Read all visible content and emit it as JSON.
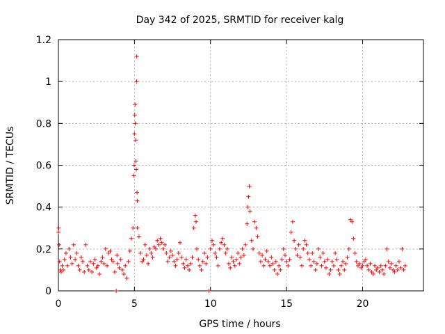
{
  "chart_data": {
    "type": "scatter",
    "title": "Day 342 of 2025, SRMTID for receiver kalg",
    "xlabel": "GPS time / hours",
    "ylabel": "SRMTID / TECUs",
    "xlim": [
      0,
      24
    ],
    "ylim": [
      0,
      1.2
    ],
    "xticks": [
      0,
      5,
      10,
      15,
      20
    ],
    "yticks": [
      0,
      0.2,
      0.4,
      0.6,
      0.8,
      1,
      1.2
    ],
    "xtick_labels": [
      "0",
      "5",
      "10",
      "15",
      "20"
    ],
    "ytick_labels": [
      "0",
      "0.2",
      "0.4",
      "0.6",
      "0.8",
      "1",
      "1.2"
    ],
    "grid": true,
    "marker": "+",
    "color": "#ff0000",
    "series": [
      {
        "name": "SRMTID",
        "points": [
          [
            0.0,
            0.28
          ],
          [
            0.02,
            0.3
          ],
          [
            0.05,
            0.22
          ],
          [
            0.08,
            0.14
          ],
          [
            0.12,
            0.1
          ],
          [
            0.18,
            0.09
          ],
          [
            0.25,
            0.12
          ],
          [
            0.32,
            0.1
          ],
          [
            0.4,
            0.15
          ],
          [
            0.5,
            0.18
          ],
          [
            0.6,
            0.12
          ],
          [
            0.7,
            0.2
          ],
          [
            0.8,
            0.16
          ],
          [
            0.9,
            0.13
          ],
          [
            1.0,
            0.22
          ],
          [
            1.1,
            0.15
          ],
          [
            1.2,
            0.18
          ],
          [
            1.3,
            0.12
          ],
          [
            1.4,
            0.1
          ],
          [
            1.5,
            0.16
          ],
          [
            1.6,
            0.14
          ],
          [
            1.7,
            0.09
          ],
          [
            1.8,
            0.22
          ],
          [
            1.9,
            0.12
          ],
          [
            2.0,
            0.1
          ],
          [
            2.1,
            0.14
          ],
          [
            2.2,
            0.09
          ],
          [
            2.3,
            0.13
          ],
          [
            2.4,
            0.15
          ],
          [
            2.5,
            0.11
          ],
          [
            2.6,
            0.12
          ],
          [
            2.7,
            0.08
          ],
          [
            2.8,
            0.14
          ],
          [
            2.9,
            0.16
          ],
          [
            3.0,
            0.13
          ],
          [
            3.1,
            0.2
          ],
          [
            3.2,
            0.12
          ],
          [
            3.3,
            0.18
          ],
          [
            3.4,
            0.19
          ],
          [
            3.5,
            0.15
          ],
          [
            3.6,
            0.14
          ],
          [
            3.7,
            0.09
          ],
          [
            3.8,
            0.0
          ],
          [
            3.85,
            0.17
          ],
          [
            3.9,
            0.13
          ],
          [
            4.0,
            0.11
          ],
          [
            4.1,
            0.15
          ],
          [
            4.2,
            0.1
          ],
          [
            4.3,
            0.08
          ],
          [
            4.4,
            0.12
          ],
          [
            4.5,
            0.06
          ],
          [
            4.6,
            0.14
          ],
          [
            4.7,
            0.19
          ],
          [
            4.8,
            0.25
          ],
          [
            4.9,
            0.3
          ],
          [
            4.95,
            0.55
          ],
          [
            4.98,
            0.6
          ],
          [
            5.0,
            0.75
          ],
          [
            5.02,
            0.84
          ],
          [
            5.04,
            0.89
          ],
          [
            5.06,
            0.8
          ],
          [
            5.08,
            0.72
          ],
          [
            5.1,
            0.62
          ],
          [
            5.12,
            0.58
          ],
          [
            5.14,
            1.0
          ],
          [
            5.15,
            1.12
          ],
          [
            5.17,
            0.47
          ],
          [
            5.19,
            0.43
          ],
          [
            5.2,
            0.3
          ],
          [
            5.3,
            0.26
          ],
          [
            5.4,
            0.18
          ],
          [
            5.5,
            0.14
          ],
          [
            5.6,
            0.15
          ],
          [
            5.7,
            0.22
          ],
          [
            5.8,
            0.17
          ],
          [
            5.9,
            0.13
          ],
          [
            6.0,
            0.2
          ],
          [
            6.1,
            0.18
          ],
          [
            6.2,
            0.16
          ],
          [
            6.3,
            0.21
          ],
          [
            6.4,
            0.2
          ],
          [
            6.5,
            0.24
          ],
          [
            6.6,
            0.22
          ],
          [
            6.7,
            0.25
          ],
          [
            6.8,
            0.23
          ],
          [
            6.9,
            0.2
          ],
          [
            7.0,
            0.22
          ],
          [
            7.1,
            0.18
          ],
          [
            7.2,
            0.14
          ],
          [
            7.3,
            0.16
          ],
          [
            7.4,
            0.19
          ],
          [
            7.5,
            0.17
          ],
          [
            7.6,
            0.14
          ],
          [
            7.7,
            0.12
          ],
          [
            7.8,
            0.15
          ],
          [
            7.9,
            0.18
          ],
          [
            8.0,
            0.23
          ],
          [
            8.1,
            0.16
          ],
          [
            8.2,
            0.13
          ],
          [
            8.3,
            0.11
          ],
          [
            8.4,
            0.15
          ],
          [
            8.5,
            0.12
          ],
          [
            8.6,
            0.1
          ],
          [
            8.7,
            0.13
          ],
          [
            8.8,
            0.16
          ],
          [
            8.9,
            0.3
          ],
          [
            9.0,
            0.36
          ],
          [
            9.05,
            0.33
          ],
          [
            9.1,
            0.2
          ],
          [
            9.2,
            0.15
          ],
          [
            9.3,
            0.12
          ],
          [
            9.4,
            0.1
          ],
          [
            9.5,
            0.14
          ],
          [
            9.6,
            0.18
          ],
          [
            9.7,
            0.13
          ],
          [
            9.8,
            0.16
          ],
          [
            9.9,
            0.0
          ],
          [
            10.0,
            0.2
          ],
          [
            10.1,
            0.24
          ],
          [
            10.2,
            0.22
          ],
          [
            10.3,
            0.18
          ],
          [
            10.4,
            0.16
          ],
          [
            10.5,
            0.12
          ],
          [
            10.6,
            0.2
          ],
          [
            10.7,
            0.23
          ],
          [
            10.8,
            0.25
          ],
          [
            10.9,
            0.22
          ],
          [
            11.0,
            0.18
          ],
          [
            11.1,
            0.2
          ],
          [
            11.2,
            0.13
          ],
          [
            11.3,
            0.11
          ],
          [
            11.4,
            0.16
          ],
          [
            11.5,
            0.14
          ],
          [
            11.6,
            0.12
          ],
          [
            11.7,
            0.15
          ],
          [
            11.8,
            0.18
          ],
          [
            11.9,
            0.13
          ],
          [
            12.0,
            0.16
          ],
          [
            12.1,
            0.2
          ],
          [
            12.2,
            0.17
          ],
          [
            12.3,
            0.22
          ],
          [
            12.4,
            0.32
          ],
          [
            12.45,
            0.4
          ],
          [
            12.5,
            0.45
          ],
          [
            12.55,
            0.5
          ],
          [
            12.6,
            0.38
          ],
          [
            12.7,
            0.24
          ],
          [
            12.8,
            0.2
          ],
          [
            12.9,
            0.33
          ],
          [
            13.0,
            0.3
          ],
          [
            13.1,
            0.26
          ],
          [
            13.2,
            0.18
          ],
          [
            13.3,
            0.14
          ],
          [
            13.4,
            0.17
          ],
          [
            13.5,
            0.12
          ],
          [
            13.6,
            0.15
          ],
          [
            13.7,
            0.19
          ],
          [
            13.8,
            0.14
          ],
          [
            13.9,
            0.12
          ],
          [
            14.0,
            0.16
          ],
          [
            14.1,
            0.13
          ],
          [
            14.2,
            0.1
          ],
          [
            14.3,
            0.14
          ],
          [
            14.4,
            0.08
          ],
          [
            14.5,
            0.12
          ],
          [
            14.6,
            0.1
          ],
          [
            14.7,
            0.15
          ],
          [
            14.8,
            0.2
          ],
          [
            14.9,
            0.17
          ],
          [
            15.0,
            0.14
          ],
          [
            15.1,
            0.12
          ],
          [
            15.2,
            0.15
          ],
          [
            15.3,
            0.28
          ],
          [
            15.4,
            0.33
          ],
          [
            15.5,
            0.24
          ],
          [
            15.6,
            0.2
          ],
          [
            15.7,
            0.17
          ],
          [
            15.8,
            0.22
          ],
          [
            15.9,
            0.16
          ],
          [
            16.0,
            0.12
          ],
          [
            16.1,
            0.2
          ],
          [
            16.2,
            0.24
          ],
          [
            16.3,
            0.22
          ],
          [
            16.4,
            0.18
          ],
          [
            16.5,
            0.15
          ],
          [
            16.6,
            0.12
          ],
          [
            16.7,
            0.18
          ],
          [
            16.8,
            0.14
          ],
          [
            16.9,
            0.1
          ],
          [
            17.0,
            0.13
          ],
          [
            17.1,
            0.2
          ],
          [
            17.2,
            0.16
          ],
          [
            17.3,
            0.12
          ],
          [
            17.4,
            0.18
          ],
          [
            17.5,
            0.14
          ],
          [
            17.6,
            0.11
          ],
          [
            17.7,
            0.15
          ],
          [
            17.8,
            0.08
          ],
          [
            17.9,
            0.1
          ],
          [
            18.0,
            0.14
          ],
          [
            18.1,
            0.12
          ],
          [
            18.2,
            0.18
          ],
          [
            18.3,
            0.15
          ],
          [
            18.4,
            0.1
          ],
          [
            18.5,
            0.08
          ],
          [
            18.6,
            0.12
          ],
          [
            18.7,
            0.14
          ],
          [
            18.8,
            0.1
          ],
          [
            18.9,
            0.13
          ],
          [
            19.0,
            0.16
          ],
          [
            19.1,
            0.2
          ],
          [
            19.2,
            0.34
          ],
          [
            19.3,
            0.33
          ],
          [
            19.4,
            0.25
          ],
          [
            19.5,
            0.18
          ],
          [
            19.6,
            0.14
          ],
          [
            19.7,
            0.12
          ],
          [
            19.8,
            0.13
          ],
          [
            19.9,
            0.11
          ],
          [
            20.0,
            0.12
          ],
          [
            20.1,
            0.14
          ],
          [
            20.2,
            0.15
          ],
          [
            20.3,
            0.12
          ],
          [
            20.4,
            0.1
          ],
          [
            20.5,
            0.13
          ],
          [
            20.6,
            0.09
          ],
          [
            20.7,
            0.08
          ],
          [
            20.8,
            0.12
          ],
          [
            20.9,
            0.1
          ],
          [
            21.0,
            0.11
          ],
          [
            21.1,
            0.09
          ],
          [
            21.2,
            0.12
          ],
          [
            21.3,
            0.1
          ],
          [
            21.4,
            0.08
          ],
          [
            21.5,
            0.12
          ],
          [
            21.6,
            0.2
          ],
          [
            21.7,
            0.14
          ],
          [
            21.8,
            0.11
          ],
          [
            21.9,
            0.13
          ],
          [
            22.0,
            0.1
          ],
          [
            22.1,
            0.09
          ],
          [
            22.2,
            0.12
          ],
          [
            22.3,
            0.1
          ],
          [
            22.4,
            0.14
          ],
          [
            22.5,
            0.11
          ],
          [
            22.6,
            0.2
          ],
          [
            22.7,
            0.1
          ],
          [
            22.8,
            0.12
          ]
        ]
      }
    ]
  }
}
